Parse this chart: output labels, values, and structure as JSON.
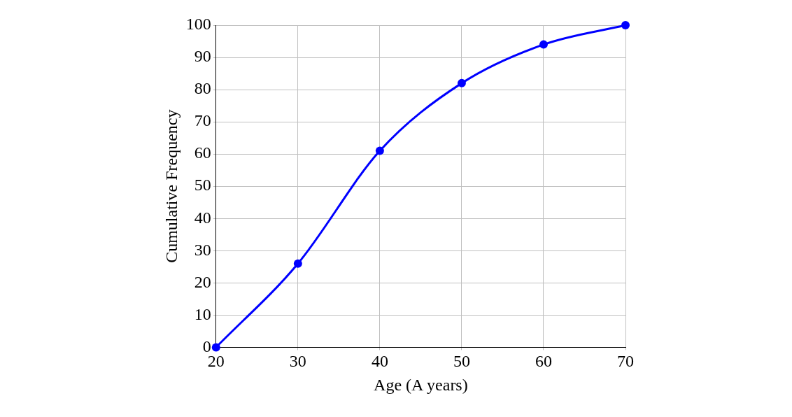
{
  "chart_data": {
    "type": "line",
    "xlabel": "Age (A years)",
    "ylabel": "Cumulative Frequency",
    "x": [
      20,
      30,
      40,
      50,
      60,
      70
    ],
    "series": [
      {
        "color": "#0000ff",
        "values": [
          0,
          26,
          61,
          82,
          94,
          100
        ]
      }
    ],
    "xlim": [
      20,
      70
    ],
    "xticks": [
      20,
      30,
      40,
      50,
      60,
      70
    ],
    "ylim": [
      0,
      100
    ],
    "yticks": [
      0,
      10,
      20,
      30,
      40,
      50,
      60,
      70,
      80,
      90,
      100
    ],
    "grid": true,
    "legend": false,
    "marker": "circle",
    "line_style": "solid"
  }
}
